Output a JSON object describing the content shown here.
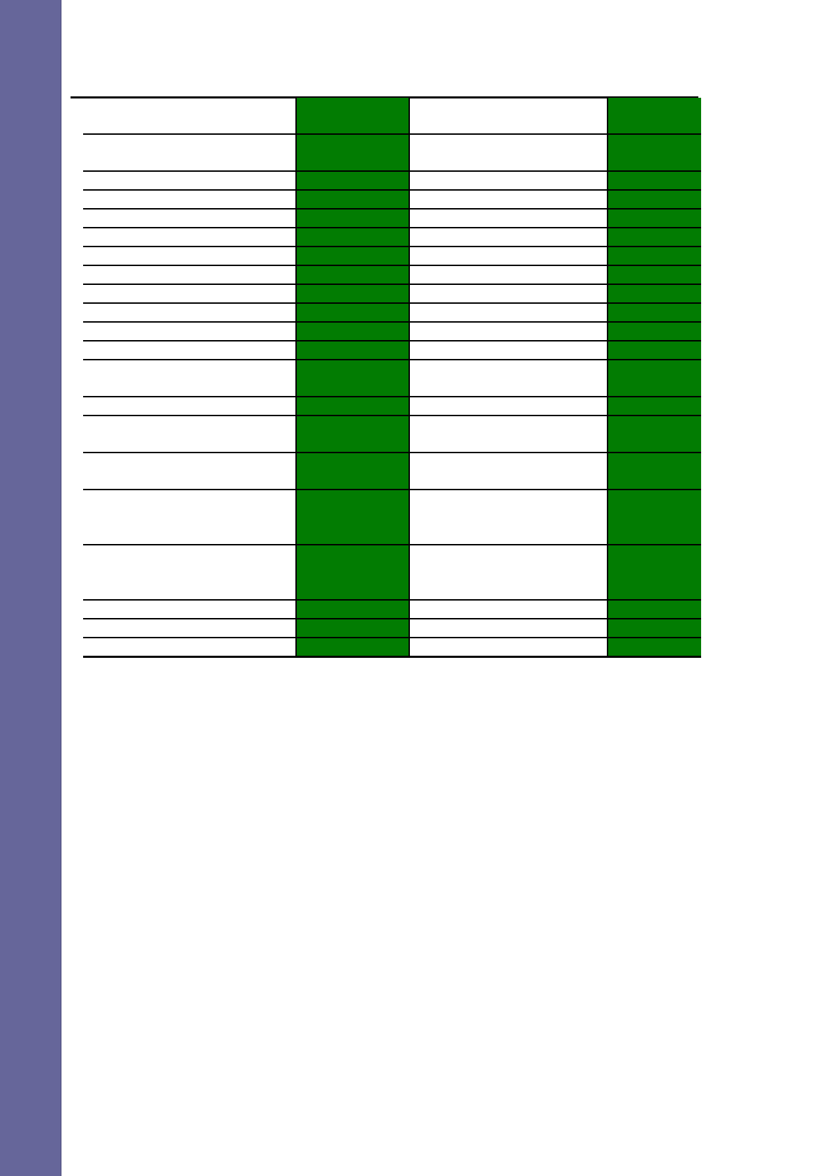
{
  "colors": {
    "sidebar": "#66669a",
    "highlight_column": "#027c02",
    "rule": "#000000"
  },
  "table": {
    "rows": [
      [
        "",
        "",
        "",
        ""
      ],
      [
        "",
        "",
        "",
        ""
      ],
      [
        "",
        "",
        "",
        ""
      ],
      [
        "",
        "",
        "",
        ""
      ],
      [
        "",
        "",
        "",
        ""
      ],
      [
        "",
        "",
        "",
        ""
      ],
      [
        "",
        "",
        "",
        ""
      ],
      [
        "",
        "",
        "",
        ""
      ],
      [
        "",
        "",
        "",
        ""
      ],
      [
        "",
        "",
        "",
        ""
      ],
      [
        "",
        "",
        "",
        ""
      ],
      [
        "",
        "",
        "",
        ""
      ],
      [
        "",
        "",
        "",
        ""
      ],
      [
        "",
        "",
        "",
        ""
      ],
      [
        "",
        "",
        "",
        ""
      ],
      [
        "",
        "",
        "",
        ""
      ],
      [
        "",
        "",
        "",
        ""
      ],
      [
        "",
        "",
        "",
        ""
      ],
      [
        "",
        "",
        "",
        ""
      ],
      [
        "",
        "",
        "",
        ""
      ],
      [
        "",
        "",
        "",
        ""
      ]
    ]
  }
}
